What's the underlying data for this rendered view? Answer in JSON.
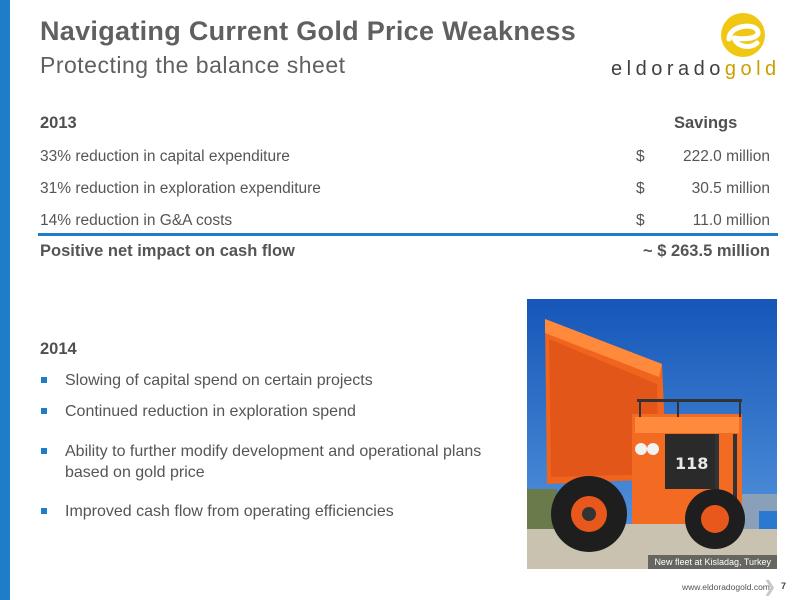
{
  "slide": {
    "title": "Navigating Current Gold Price Weakness",
    "subtitle": "Protecting the balance sheet"
  },
  "logo": {
    "mark_icon": "eldorado-e-icon",
    "text_left": "eldorado",
    "text_right": "gold",
    "colors": {
      "mark": "#f0c814",
      "text": "#404040",
      "accent": "#c9a000"
    }
  },
  "savings_table": {
    "year_heading": "2013",
    "column_heading": "Savings",
    "rows": [
      {
        "label": "33% reduction in capital expenditure",
        "currency": "$",
        "value": "222.0 million"
      },
      {
        "label": "31% reduction in exploration expenditure",
        "currency": "$",
        "value": "30.5 million"
      },
      {
        "label": "14% reduction in G&A costs",
        "currency": "$",
        "value": "11.0 million"
      }
    ],
    "total": {
      "label": "Positive net impact on cash flow",
      "value": "~ $ 263.5 million"
    }
  },
  "plan_2014": {
    "heading": "2014",
    "bullets": [
      "Slowing of capital spend on certain projects",
      "Continued reduction in exploration spend",
      "Ability to further modify development and operational plans based on gold price",
      "Improved cash flow from operating efficiencies"
    ]
  },
  "photo": {
    "caption": "New fleet at Kisladag, Turkey"
  },
  "footer": {
    "url": "www.eldoradogold.com",
    "page_number": "7"
  },
  "theme": {
    "accent": "#1d7dc8",
    "text": "#555555"
  }
}
